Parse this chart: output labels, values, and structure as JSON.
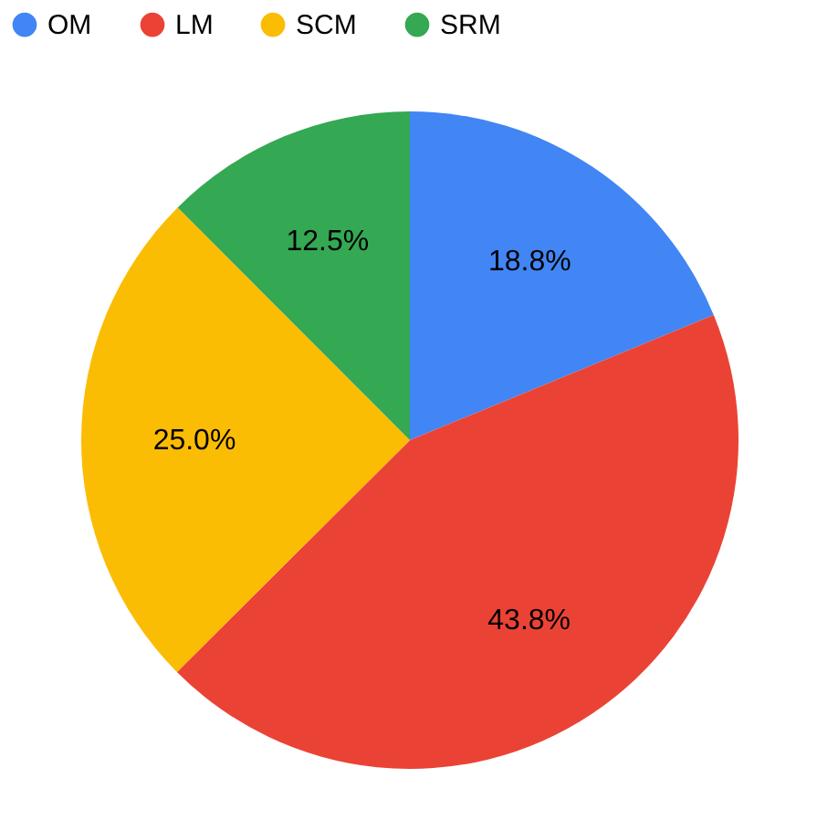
{
  "chart_data": {
    "type": "pie",
    "categories": [
      "OM",
      "LM",
      "SCM",
      "SRM"
    ],
    "values": [
      18.8,
      43.8,
      25.0,
      12.5
    ],
    "colors": [
      "#4285f4",
      "#ea4335",
      "#fbbc04",
      "#34a853"
    ],
    "value_labels": [
      "18.8%",
      "43.8%",
      "25.0%",
      "12.5%"
    ],
    "legend": "top"
  }
}
